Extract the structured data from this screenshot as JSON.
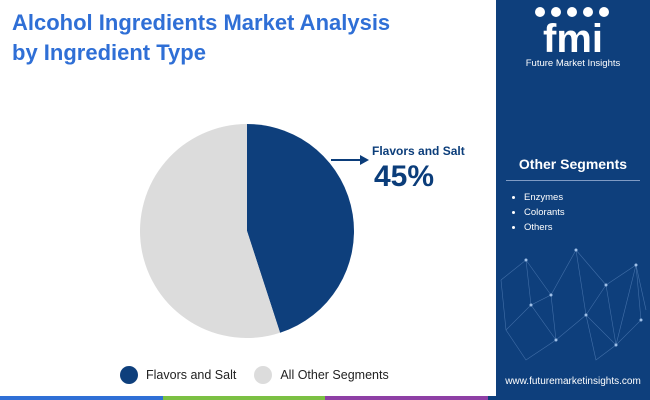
{
  "header": {
    "title_line1": "Alcohol Ingredients Market Analysis",
    "title_line2": "by Ingredient Type"
  },
  "chart_data": {
    "type": "pie",
    "title": "Alcohol Ingredients Market Analysis by Ingredient Type",
    "slices": [
      {
        "label": "Flavors and Salt",
        "value": 45,
        "color": "#0e3f7c"
      },
      {
        "label": "All Other Segments",
        "value": 55,
        "color": "#dcdcdc"
      }
    ],
    "start_angle": "12 o'clock, clockwise",
    "legend_position": "bottom",
    "callout": {
      "label": "Flavors and Salt",
      "value": "45%"
    }
  },
  "legend": [
    {
      "label": "Flavors and Salt",
      "color": "#0e3f7c"
    },
    {
      "label": "All Other Segments",
      "color": "#dcdcdc"
    }
  ],
  "sidebar": {
    "brand_name": "Future Market Insights",
    "logo_letters": "fmi",
    "segments_title": "Other Segments",
    "segments": [
      "Enzymes",
      "Colorants",
      "Others"
    ],
    "url": "www.futuremarketinsights.com",
    "background": "#0e3f7c"
  },
  "bottom_bar_colors": [
    "#2f6fd6",
    "#7bc043",
    "#8e3fa5",
    "#0e3f7c"
  ]
}
